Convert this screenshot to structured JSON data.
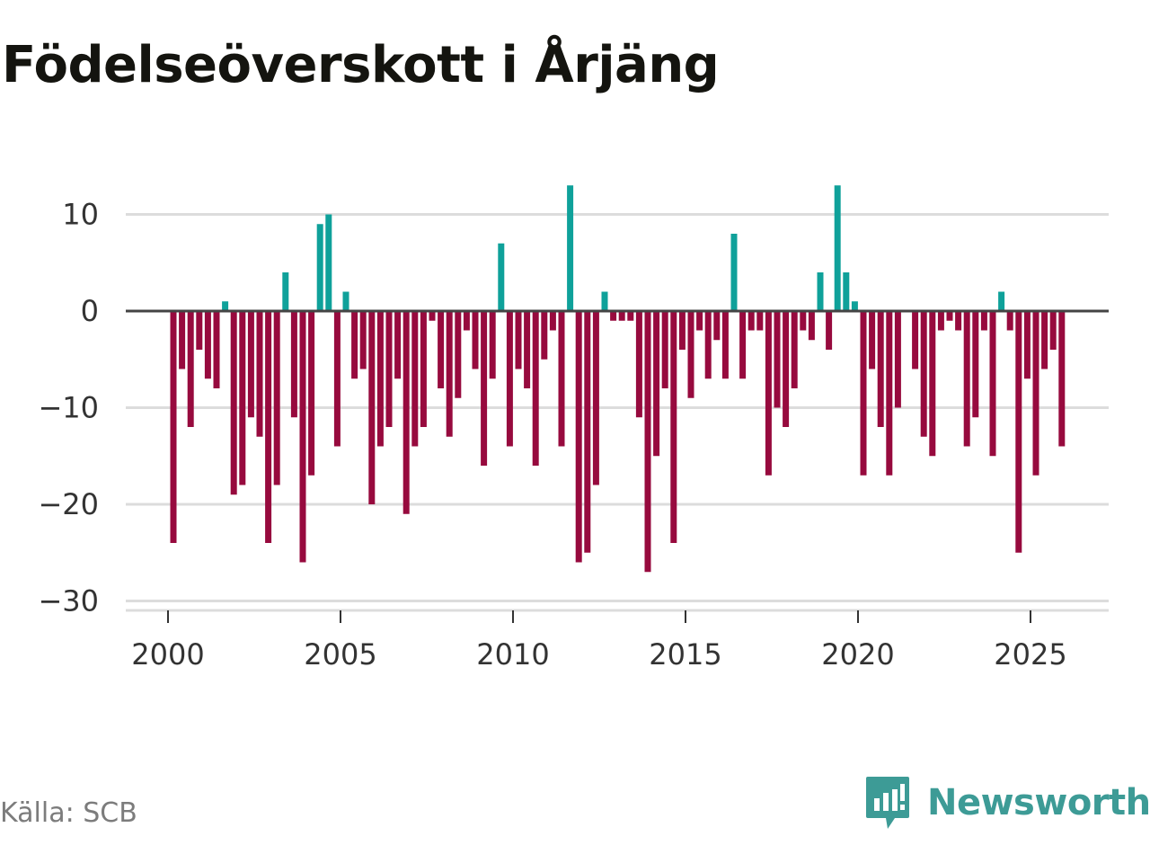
{
  "title": "Födelseöverskott i Årjäng",
  "source": "Källa: SCB",
  "brand": {
    "name": "Newsworthy",
    "icon": "newsworthy-logo-icon"
  },
  "colors": {
    "positive": "#0fa19a",
    "negative": "#970a3e",
    "gridline": "#dcdcdc",
    "zero_line": "#444444",
    "brand": "#3d9b96"
  },
  "chart_data": {
    "type": "bar",
    "title": "Födelseöverskott i Årjäng",
    "xlabel": "",
    "ylabel": "",
    "x_start": 2000.0,
    "x_step": 0.25,
    "xlim": [
      1999.3,
      2027.3
    ],
    "xticks": [
      2000,
      2005,
      2010,
      2015,
      2020,
      2025
    ],
    "ylim": [
      -31,
      14
    ],
    "yticks": [
      10,
      0,
      -10,
      -20,
      -30
    ],
    "ytick_labels": [
      "10",
      "0",
      "−10",
      "−20",
      "−30"
    ],
    "grid": true,
    "legend": "none",
    "values": [
      -24,
      -6,
      -12,
      -4,
      -7,
      -8,
      1,
      -19,
      -18,
      -11,
      -13,
      -24,
      -18,
      4,
      -11,
      -26,
      -17,
      9,
      10,
      -14,
      2,
      -7,
      -6,
      -20,
      -14,
      -12,
      -7,
      -21,
      -14,
      -12,
      -1,
      -8,
      -13,
      -9,
      -2,
      -6,
      -16,
      -7,
      7,
      -14,
      -6,
      -8,
      -16,
      -5,
      -2,
      -14,
      13,
      -26,
      -25,
      -18,
      2,
      -1,
      -1,
      -1,
      -11,
      -27,
      -15,
      -8,
      -24,
      -4,
      -9,
      -2,
      -7,
      -3,
      -7,
      8,
      -7,
      -2,
      -2,
      -17,
      -10,
      -12,
      -8,
      -2,
      -3,
      4,
      -4,
      13,
      4,
      1,
      -17,
      -6,
      -12,
      -17,
      -10,
      0,
      -6,
      -13,
      -15,
      -2,
      -1,
      -2,
      -14,
      -11,
      -2,
      -15,
      2,
      -2,
      -25,
      -7,
      -17,
      -6,
      -4,
      -14
    ]
  }
}
